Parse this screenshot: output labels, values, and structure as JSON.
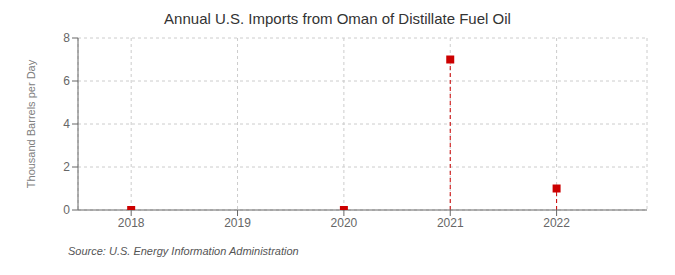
{
  "chart_data": {
    "type": "stem",
    "title": "Annual U.S. Imports from Oman of Distillate Fuel Oil",
    "ylabel": "Thousand Barrels per Day",
    "source": "Source: U.S. Energy Information Administration",
    "x": [
      2018,
      2020,
      2021,
      2022
    ],
    "values": [
      0.0,
      0.0,
      7.0,
      1.0
    ],
    "color": "#CC0000",
    "marker": "square",
    "line_style": "dashed",
    "xlim": [
      2017.5,
      2022.85
    ],
    "ylim": [
      0,
      8
    ],
    "xticks": [
      2018,
      2019,
      2020,
      2021,
      2022
    ],
    "yticks": [
      0,
      2,
      4,
      6,
      8
    ],
    "grid": true
  }
}
